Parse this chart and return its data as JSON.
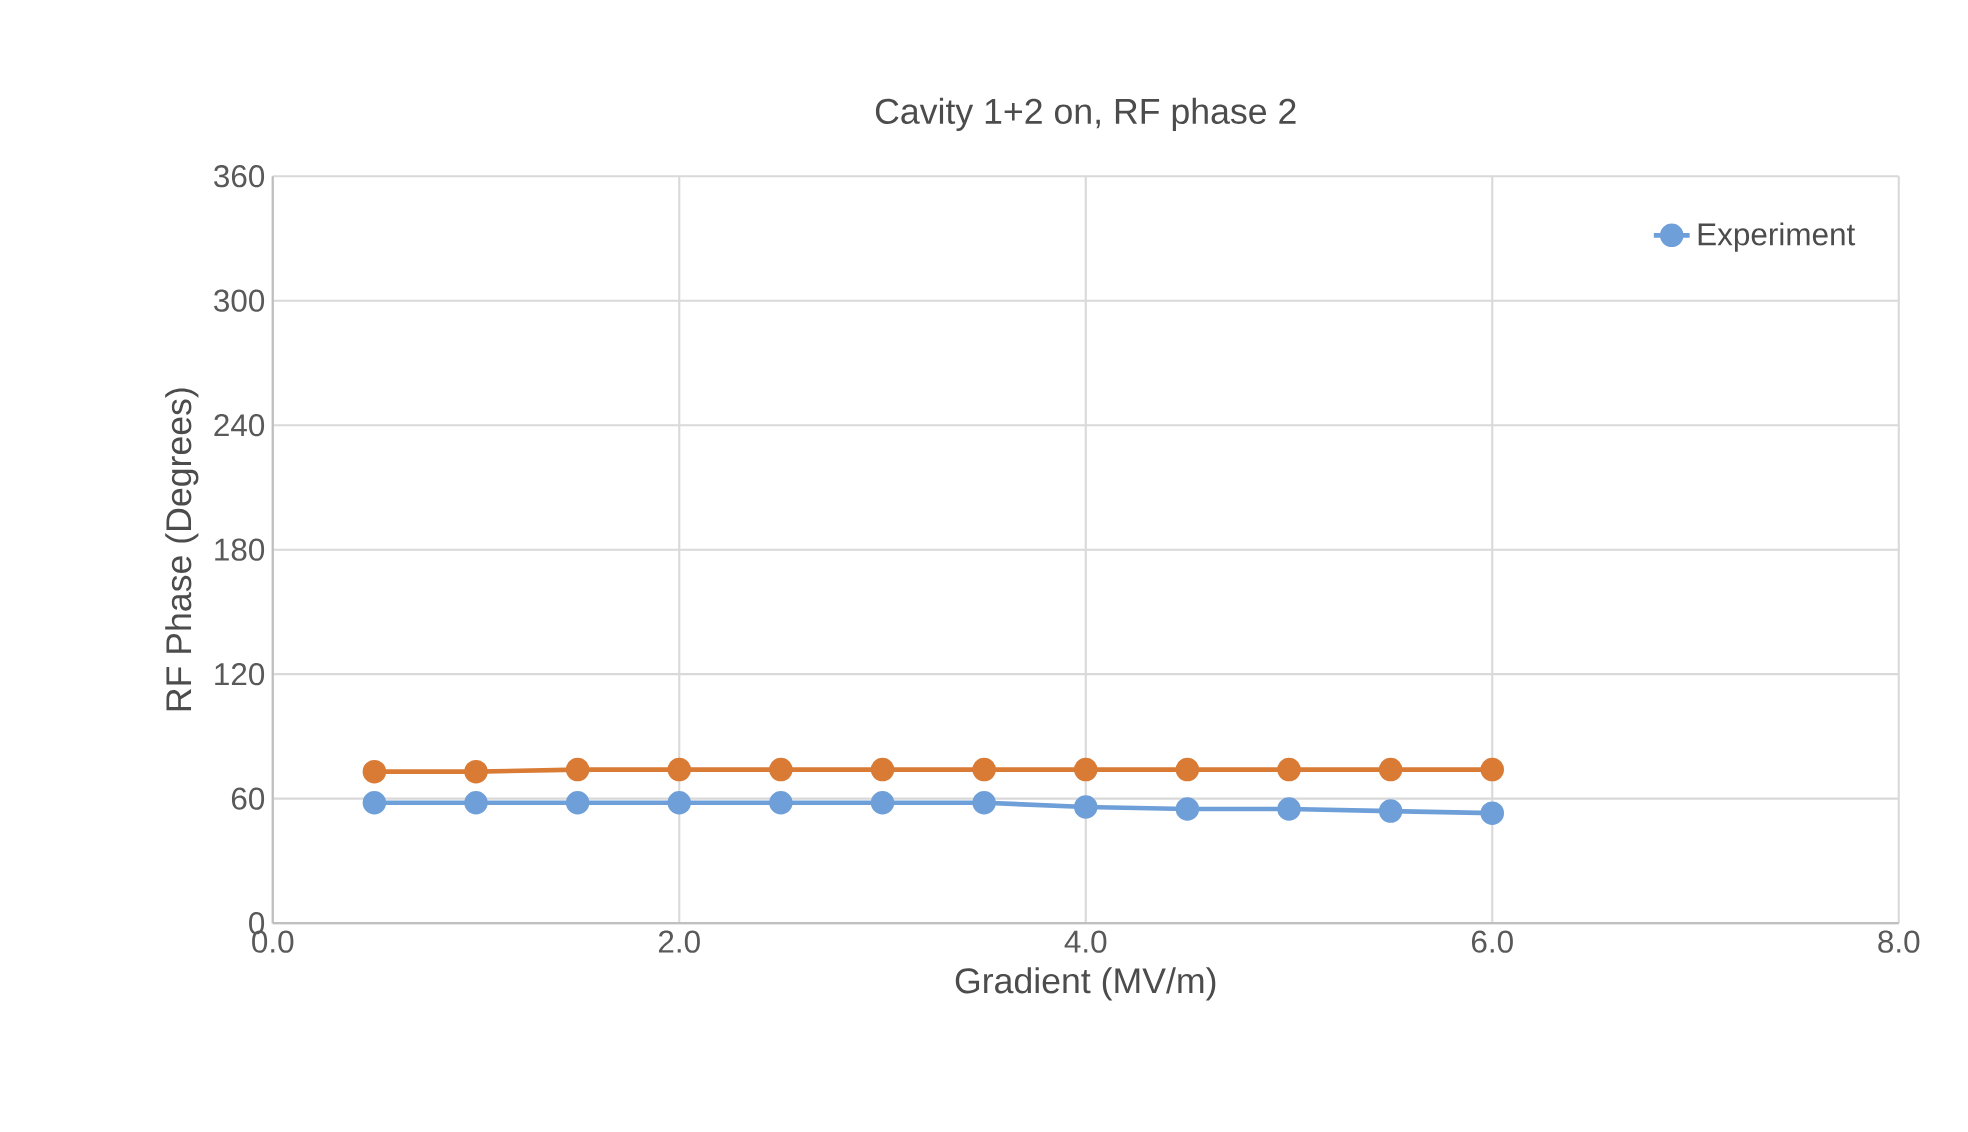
{
  "chart_data": {
    "type": "line",
    "title": "Cavity 1+2 on, RF phase 2",
    "xlabel": "Gradient (MV/m)",
    "ylabel": "RF Phase (Degrees)",
    "x": [
      0.5,
      1.0,
      1.5,
      2.0,
      2.5,
      3.0,
      3.5,
      4.0,
      4.5,
      5.0,
      5.5,
      6.0
    ],
    "series": [
      {
        "name": "Experiment",
        "color": "#6f9fd8",
        "values": [
          58,
          58,
          58,
          58,
          58,
          58,
          58,
          56,
          55,
          55,
          54,
          53
        ]
      },
      {
        "color": "#d97b35",
        "values": [
          73,
          73,
          74,
          74,
          74,
          74,
          74,
          74,
          74,
          74,
          74,
          74
        ]
      }
    ],
    "xlim": [
      0,
      8
    ],
    "xticks": [
      {
        "value": 0,
        "label": "0.0"
      },
      {
        "value": 2,
        "label": "2.0"
      },
      {
        "value": 4,
        "label": "4.0"
      },
      {
        "value": 6,
        "label": "6.0"
      },
      {
        "value": 8,
        "label": "8.0"
      }
    ],
    "ylim": [
      0,
      360
    ],
    "yticks": [
      0,
      60,
      120,
      180,
      240,
      300,
      360
    ],
    "grid": true,
    "legend": "top right",
    "marker": "circle",
    "line_style": "solid"
  }
}
